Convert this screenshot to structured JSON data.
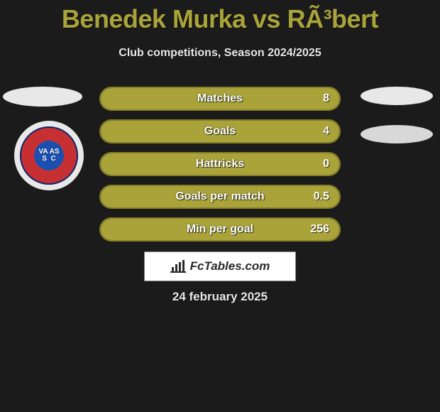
{
  "title": "Benedek Murka vs RÃ³bert",
  "subtitle": "Club competitions, Season 2024/2025",
  "date": "24 february 2025",
  "brand": {
    "text": "FcTables.com"
  },
  "colors": {
    "accent": "#a9a33a",
    "accent_border": "#857f29",
    "background": "#1b1b1b",
    "row_bg": "#2a2a2a",
    "text_light": "#e8e8e8",
    "white": "#ffffff",
    "badge_ring_bg": "#e8e8e8",
    "badge_red": "#c73032",
    "badge_blue": "#1b4fb0",
    "badge_outline": "#0b2b6b"
  },
  "club_badge": {
    "letters": "VA AS\nS  C"
  },
  "stats": [
    {
      "label": "Matches",
      "value": "8",
      "fill_pct": 100
    },
    {
      "label": "Goals",
      "value": "4",
      "fill_pct": 100
    },
    {
      "label": "Hattricks",
      "value": "0",
      "fill_pct": 100
    },
    {
      "label": "Goals per match",
      "value": "0.5",
      "fill_pct": 100
    },
    {
      "label": "Min per goal",
      "value": "256",
      "fill_pct": 100
    }
  ]
}
